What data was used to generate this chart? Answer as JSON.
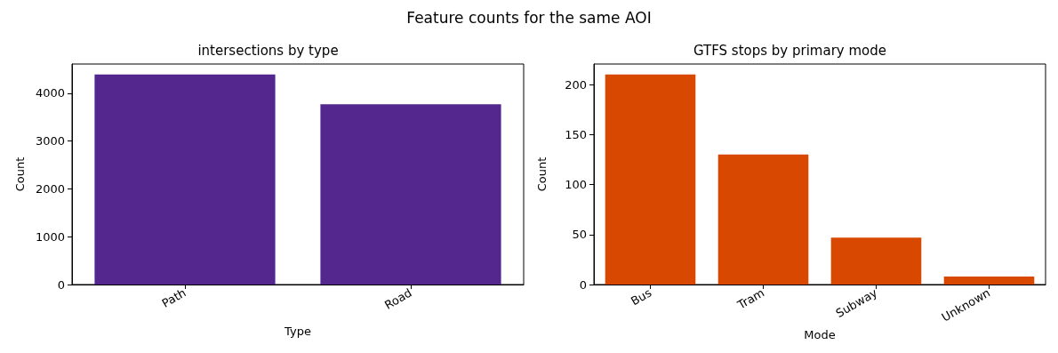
{
  "chart_data": [
    {
      "type": "other",
      "title": "Feature counts for the same AOI"
    },
    {
      "type": "bar",
      "title": "intersections by type",
      "xlabel": "Type",
      "ylabel": "Count",
      "categories": [
        "Path",
        "Road"
      ],
      "values": [
        4390,
        3770
      ],
      "color": "#54278f",
      "ylim": [
        0,
        4610
      ],
      "yticks": [
        0,
        1000,
        2000,
        3000,
        4000
      ],
      "grid": false
    },
    {
      "type": "bar",
      "title": "GTFS stops by primary mode",
      "xlabel": "Mode",
      "ylabel": "Count",
      "categories": [
        "Bus",
        "Tram",
        "Subway",
        "Unknown"
      ],
      "values": [
        210,
        130,
        47,
        8
      ],
      "color": "#d94801",
      "ylim": [
        0,
        220.5
      ],
      "yticks": [
        0,
        50,
        100,
        150,
        200
      ],
      "grid": false
    }
  ]
}
